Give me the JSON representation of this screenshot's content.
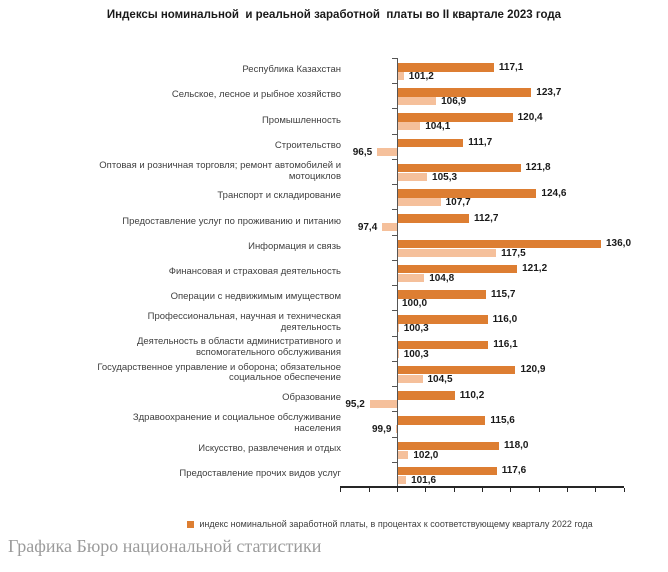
{
  "title": "Индексы номинальной  и реальной заработной  платы во II квартале 2023 года",
  "chart_data": {
    "type": "bar",
    "orientation": "horizontal",
    "baseline": 100,
    "xlim": [
      90,
      140
    ],
    "x_tick_step": 5,
    "x_tick_labels_visible": false,
    "grid": false,
    "legend_position": "bottom",
    "value_label_decimal_separator": ",",
    "categories": [
      "Республика Казахстан",
      "Сельское, лесное и рыбное хозяйство",
      "Промышленность",
      "Строительство",
      "Оптовая и розничная торговля; ремонт автомобилей и мотоциклов",
      "Транспорт и складирование",
      "Предоставление услуг по проживанию и питанию",
      "Информация и связь",
      "Финансовая и страховая деятельность",
      "Операции с недвижимым имуществом",
      "Профессиональная, научная и техническая деятельность",
      "Деятельность в области административного и вспомогательного обслуживания",
      "Государственное управление и оборона;  обязательное социальное обеспечение",
      "Образование",
      "Здравоохранение и социальное обслуживание населения",
      "Искусство, развлечения и отдых",
      "Предоставление прочих видов услуг"
    ],
    "series": [
      {
        "name": "номинальная заработная плата",
        "color": "#DD7E32",
        "values": [
          117.1,
          123.7,
          120.4,
          111.7,
          121.8,
          124.6,
          112.7,
          136.0,
          121.2,
          115.7,
          116.0,
          116.1,
          120.9,
          110.2,
          115.6,
          118.0,
          117.6
        ]
      },
      {
        "name": "реальная заработная плата",
        "color": "#F5C09B",
        "values": [
          101.2,
          106.9,
          104.1,
          96.5,
          105.3,
          107.7,
          97.4,
          117.5,
          104.8,
          100.0,
          100.3,
          100.3,
          104.5,
          95.2,
          99.9,
          102.0,
          101.6
        ]
      }
    ]
  },
  "legend": {
    "items": [
      {
        "label": "индекс номинальной заработной платы, в процентах к соответствующему кварталу 2022 года",
        "color": "#DD7E32"
      }
    ]
  },
  "footer": {
    "credit": "Графика Бюро национальной статистики"
  }
}
